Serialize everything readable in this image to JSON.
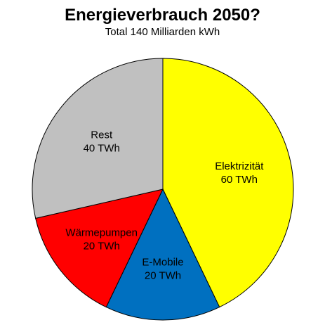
{
  "chart_data": {
    "type": "pie",
    "title": "Energieverbrauch 2050?",
    "subtitle": "Total 140 Milliarden kWh",
    "unit": "TWh",
    "slices": [
      {
        "label": "Elektrizität",
        "value": 60,
        "value_label": "60 TWh",
        "color": "#ffff00"
      },
      {
        "label": "E-Mobile",
        "value": 20,
        "value_label": "20 TWh",
        "color": "#0070c0"
      },
      {
        "label": "Wärmepumpen",
        "value": 20,
        "value_label": "20 TWh",
        "color": "#ff0000"
      },
      {
        "label": "Rest",
        "value": 40,
        "value_label": "40 TWh",
        "color": "#c0c0c0"
      }
    ],
    "start_angle": "12 o'clock",
    "direction": "clockwise",
    "legend": "none"
  }
}
